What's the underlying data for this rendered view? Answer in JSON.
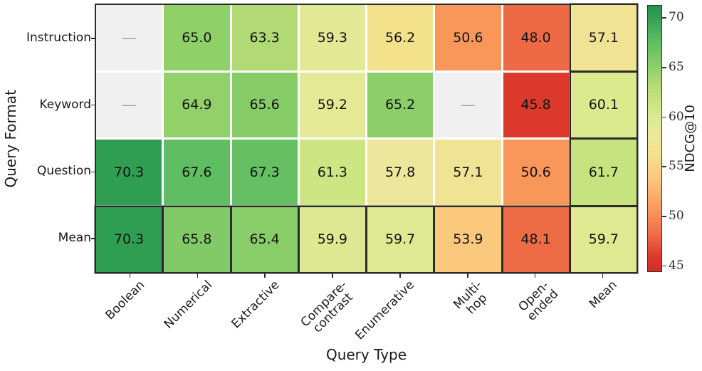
{
  "chart_data": {
    "type": "heatmap",
    "xlabel": "Query Type",
    "ylabel": "Query Format",
    "columns": [
      "Boolean",
      "Numerical",
      "Extractive",
      "Compare-\ncontrast",
      "Enumerative",
      "Multi-hop",
      "Open-ended",
      "Mean"
    ],
    "rows": [
      "Instruction",
      "Keyword",
      "Question",
      "Mean"
    ],
    "values": [
      [
        null,
        65.0,
        63.3,
        59.3,
        56.2,
        50.6,
        48.0,
        57.1
      ],
      [
        null,
        64.9,
        65.6,
        59.2,
        65.2,
        null,
        45.8,
        60.1
      ],
      [
        70.3,
        67.6,
        67.3,
        61.3,
        57.8,
        57.1,
        50.6,
        61.7
      ],
      [
        70.3,
        65.8,
        65.4,
        59.9,
        59.7,
        53.9,
        48.1,
        59.7
      ]
    ],
    "missing_label": "—",
    "missing_color": "#f0f0f0",
    "highlight_row": "Mean",
    "highlight_column": "Mean",
    "grid_line_color": "#ffffff",
    "border_color": "#2b2b2b",
    "colorbar": {
      "label": "NDCG@10",
      "ticks": [
        70,
        65,
        60,
        55,
        50,
        45
      ],
      "vmin": 44.4,
      "vmax": 71.3
    },
    "colormap": {
      "name": "RdYlGn",
      "stops": [
        [
          44.4,
          "#d22e26"
        ],
        [
          45.8,
          "#da392c"
        ],
        [
          48.0,
          "#ee6a44"
        ],
        [
          50.6,
          "#f9975a"
        ],
        [
          53.9,
          "#fbc97d"
        ],
        [
          56.2,
          "#f4e18c"
        ],
        [
          57.8,
          "#ece79a"
        ],
        [
          59.3,
          "#e2e995"
        ],
        [
          60.1,
          "#dbe98f"
        ],
        [
          61.3,
          "#cde583"
        ],
        [
          63.3,
          "#b1da74"
        ],
        [
          65.0,
          "#90d069"
        ],
        [
          67.6,
          "#5fbd62"
        ],
        [
          70.3,
          "#2f9e52"
        ],
        [
          71.3,
          "#219449"
        ]
      ]
    }
  }
}
